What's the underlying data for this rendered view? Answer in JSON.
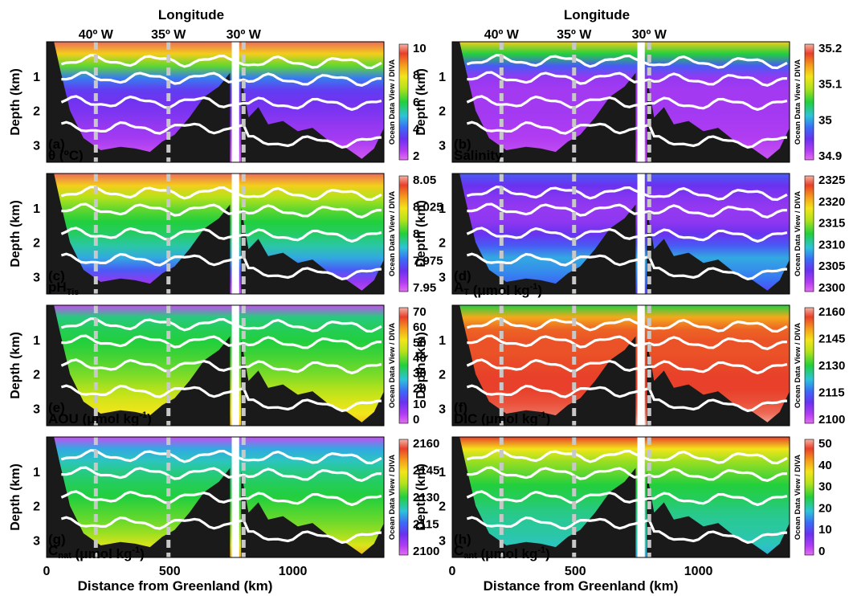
{
  "chart_data": [
    {
      "type": "heatmap",
      "panel_tag": "(a)",
      "variable": "θ (ºC)",
      "colorbar": {
        "ticks": [
          "10",
          "8",
          "6",
          "4",
          "2"
        ],
        "min": 2,
        "max": 10,
        "caption": "Ocean Data View / DIVA"
      },
      "colormap": "low-magenta-high-red"
    },
    {
      "type": "heatmap",
      "panel_tag": "(b)",
      "variable": "Salinity",
      "colorbar": {
        "ticks": [
          "35.2",
          "35.1",
          "35",
          "34.9"
        ],
        "min": 34.9,
        "max": 35.2,
        "caption": "Ocean Data View / DIVA"
      },
      "colormap": "low-magenta-high-red"
    },
    {
      "type": "heatmap",
      "panel_tag": "(c)",
      "variable": "pH",
      "variable_sub": "Tis",
      "colorbar": {
        "ticks": [
          "8.05",
          "8.025",
          "8",
          "7.975",
          "7.95"
        ],
        "min": 7.95,
        "max": 8.05,
        "caption": "Ocean Data View / DIVA"
      },
      "colormap": "low-magenta-high-red"
    },
    {
      "type": "heatmap",
      "panel_tag": "(d)",
      "variable": "A",
      "variable_sub": "T",
      "unit": " (μmol kg",
      "unit_sup": "-1",
      "unit_end": ")",
      "colorbar": {
        "ticks": [
          "2325",
          "2320",
          "2315",
          "2310",
          "2305",
          "2300"
        ],
        "min": 2300,
        "max": 2325,
        "caption": "Ocean Data View / DIVA"
      },
      "colormap": "low-magenta-high-red"
    },
    {
      "type": "heatmap",
      "panel_tag": "(e)",
      "variable": "AOU (μmol kg",
      "unit_sup": "-1",
      "unit_end": ")",
      "colorbar": {
        "ticks": [
          "70",
          "60",
          "50",
          "40",
          "30",
          "20",
          "10",
          "0"
        ],
        "min": 0,
        "max": 70,
        "caption": "Ocean Data View / DIVA"
      },
      "colormap": "low-magenta-high-red"
    },
    {
      "type": "heatmap",
      "panel_tag": "(f)",
      "variable": "DIC (μmol kg",
      "unit_sup": "-1",
      "unit_end": ")",
      "colorbar": {
        "ticks": [
          "2160",
          "2145",
          "2130",
          "2115",
          "2100"
        ],
        "min": 2100,
        "max": 2165,
        "caption": "Ocean Data View / DIVA"
      },
      "colormap": "low-magenta-high-red"
    },
    {
      "type": "heatmap",
      "panel_tag": "(g)",
      "variable": "C",
      "variable_sub": "nat",
      "unit": " (μmol kg",
      "unit_sup": "-1",
      "unit_end": ")",
      "colorbar": {
        "ticks": [
          "2160",
          "2145",
          "2130",
          "2115",
          "2100"
        ],
        "min": 2100,
        "max": 2165,
        "caption": "Ocean Data View / DIVA"
      },
      "colormap": "low-magenta-high-red"
    },
    {
      "type": "heatmap",
      "panel_tag": "(h)",
      "variable": "C",
      "variable_sub": "ant",
      "unit": " (μmol kg",
      "unit_sup": "-1",
      "unit_end": ")",
      "colorbar": {
        "ticks": [
          "50",
          "40",
          "30",
          "20",
          "10",
          "0"
        ],
        "min": 0,
        "max": 50,
        "caption": "Ocean Data View / DIVA"
      },
      "colormap": "low-magenta-high-red"
    }
  ],
  "axes": {
    "top_label": "Longitude",
    "top_ticks": [
      "40º W",
      "35º W",
      "30º W"
    ],
    "bottom_label": "Distance from Greenland (km)",
    "bottom_ticks": [
      "0",
      "500",
      "1000"
    ],
    "x_range_km": [
      0,
      1370
    ],
    "y_label": "Depth (km)",
    "y_ticks": [
      "1",
      "2",
      "3"
    ],
    "y_range_km": [
      0,
      3.5
    ]
  },
  "colors": {
    "bathymetry": "#1a1a1a",
    "isolines": "#ffffff",
    "station_lines": "#c8c8c8"
  }
}
